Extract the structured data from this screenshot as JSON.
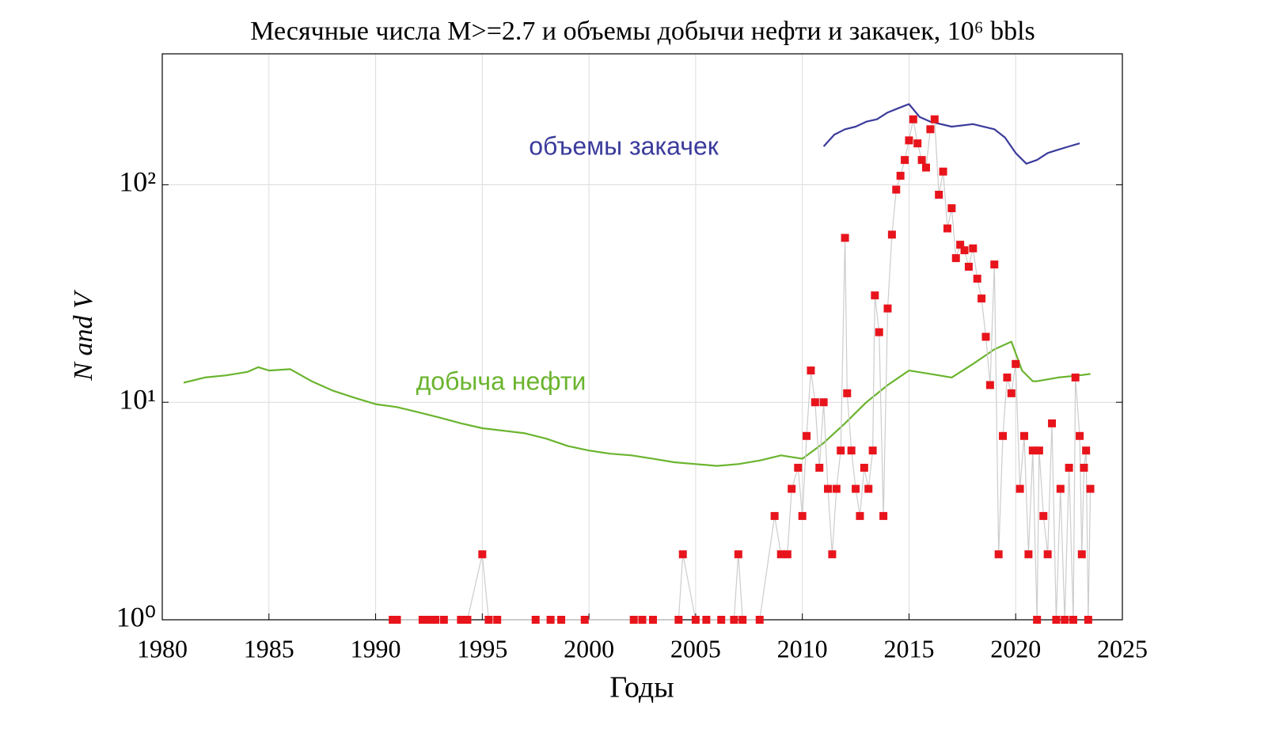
{
  "chart_data": {
    "type": "line",
    "title": "Месячные числа M>=2.7 и объемы добычи нефти и закачек, 10⁶ bbls",
    "x_label": "Годы",
    "y_label": "N and V",
    "annotations": [
      "объемы закачек",
      "добыча нефти"
    ],
    "log_y": true,
    "grid": true,
    "xlim": [
      1980,
      2025
    ],
    "ylim": [
      1,
      400
    ],
    "xticks": [
      1980,
      1985,
      1990,
      1995,
      2000,
      2005,
      2010,
      2015,
      2020,
      2025
    ],
    "yticks": [
      {
        "value": 1,
        "label": "10⁰"
      },
      {
        "value": 10,
        "label": "10¹"
      },
      {
        "value": 100,
        "label": "10²"
      }
    ],
    "series": [
      {
        "color": "#6ab42e",
        "marker": "none",
        "x": [
          1981,
          1982,
          1983,
          1984,
          1984.5,
          1985,
          1986,
          1987,
          1988,
          1989,
          1990,
          1991,
          1992,
          1993,
          1994,
          1995,
          1996,
          1997,
          1998,
          1999,
          2000,
          2001,
          2002,
          2003,
          2004,
          2005,
          2006,
          2007,
          2008,
          2009,
          2010,
          2011,
          2012,
          2013,
          2014,
          2015,
          2016,
          2017,
          2018,
          2019,
          2019.8,
          2020.3,
          2020.8,
          2021,
          2022,
          2023,
          2023.5
        ],
        "values": [
          12.3,
          13,
          13.3,
          13.8,
          14.5,
          14,
          14.2,
          12.5,
          11.3,
          10.5,
          9.8,
          9.5,
          9,
          8.5,
          8,
          7.6,
          7.4,
          7.2,
          6.8,
          6.3,
          6,
          5.8,
          5.7,
          5.5,
          5.3,
          5.2,
          5.1,
          5.2,
          5.4,
          5.7,
          5.5,
          6.5,
          8,
          10,
          12,
          14,
          13.5,
          13,
          15,
          17.5,
          19,
          14,
          12.5,
          12.5,
          13,
          13.3,
          13.5
        ]
      },
      {
        "color": "#3b3b9c",
        "marker": "none",
        "x": [
          2011,
          2011.5,
          2012,
          2012.5,
          2013,
          2013.5,
          2014,
          2014.5,
          2015,
          2015.5,
          2016,
          2017,
          2018,
          2019,
          2019.5,
          2020,
          2020.5,
          2021,
          2021.5,
          2022,
          2022.5,
          2023
        ],
        "values": [
          150,
          170,
          180,
          185,
          195,
          200,
          215,
          225,
          235,
          205,
          195,
          185,
          190,
          180,
          165,
          140,
          125,
          130,
          140,
          145,
          150,
          155
        ]
      },
      {
        "color": "#e8141c",
        "line_color": "#cccccc",
        "marker": "square",
        "x": [
          1990.8,
          1991,
          1992.2,
          1992.5,
          1992.8,
          1993.2,
          1994,
          1994.3,
          1995,
          1995.3,
          1995.7,
          1997.5,
          1998.2,
          1998.7,
          1999.8,
          2002.1,
          2002.5,
          2003,
          2004.2,
          2004.4,
          2005,
          2005.5,
          2006.2,
          2006.8,
          2007,
          2007.2,
          2008,
          2008.7,
          2009,
          2009.3,
          2009.5,
          2009.8,
          2010,
          2010.2,
          2010.4,
          2010.6,
          2010.8,
          2011,
          2011.2,
          2011.4,
          2011.6,
          2011.8,
          2012,
          2012.1,
          2012.3,
          2012.5,
          2012.7,
          2012.9,
          2013.1,
          2013.3,
          2013.4,
          2013.6,
          2013.8,
          2014,
          2014.2,
          2014.4,
          2014.6,
          2014.8,
          2015,
          2015.2,
          2015.4,
          2015.6,
          2015.8,
          2016,
          2016.2,
          2016.4,
          2016.6,
          2016.8,
          2017,
          2017.2,
          2017.4,
          2017.6,
          2017.8,
          2018,
          2018.2,
          2018.4,
          2018.6,
          2018.8,
          2019,
          2019.2,
          2019.4,
          2019.6,
          2019.8,
          2020,
          2020.2,
          2020.4,
          2020.6,
          2020.8,
          2021,
          2021.1,
          2021.3,
          2021.5,
          2021.7,
          2021.9,
          2022.1,
          2022.3,
          2022.5,
          2022.7,
          2022.8,
          2023,
          2023.1,
          2023.2,
          2023.3,
          2023.4,
          2023.5
        ],
        "values": [
          1,
          1,
          1,
          1,
          1,
          1,
          1,
          1,
          2,
          1,
          1,
          1,
          1,
          1,
          1,
          1,
          1,
          1,
          1,
          2,
          1,
          1,
          1,
          1,
          2,
          1,
          1,
          3,
          2,
          2,
          4,
          5,
          3,
          7,
          14,
          10,
          5,
          10,
          4,
          2,
          4,
          6,
          57,
          11,
          6,
          4,
          3,
          5,
          4,
          6,
          31,
          21,
          3,
          27,
          59,
          95,
          110,
          130,
          160,
          200,
          155,
          130,
          120,
          180,
          200,
          90,
          115,
          63,
          78,
          46,
          53,
          50,
          42,
          51,
          37,
          30,
          20,
          12,
          43,
          2,
          7,
          13,
          11,
          15,
          4,
          7,
          2,
          6,
          1,
          6,
          3,
          2,
          8,
          1,
          4,
          1,
          5,
          1,
          13,
          7,
          2,
          5,
          6,
          1,
          4
        ]
      }
    ]
  }
}
